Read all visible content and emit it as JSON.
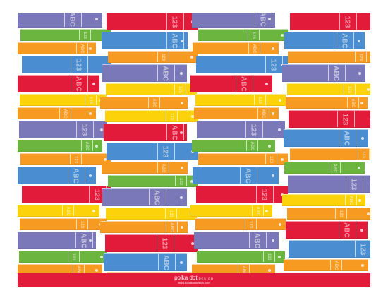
{
  "palette": {
    "red": "#e31b3b",
    "green": "#6cb63f",
    "orange": "#f79a22",
    "blue": "#4a8ed1",
    "purple": "#7a78b8",
    "yellow": "#fcd20a"
  },
  "spine_labels": [
    "ABC",
    "123"
  ],
  "columns": [
    {
      "books": [
        "purple",
        "green",
        "orange",
        "blue",
        "red",
        "yellow",
        "orange",
        "purple",
        "green",
        "orange",
        "blue",
        "red",
        "yellow",
        "orange",
        "purple",
        "green",
        "orange",
        "blue"
      ]
    },
    {
      "books": [
        "red",
        "blue",
        "orange",
        "purple",
        "yellow",
        "orange",
        "yellow",
        "red",
        "blue",
        "orange",
        "green",
        "purple",
        "yellow",
        "orange",
        "red",
        "blue",
        "orange"
      ]
    },
    {
      "books": [
        "purple",
        "green",
        "orange",
        "blue",
        "red",
        "yellow",
        "orange",
        "purple",
        "green",
        "orange",
        "blue",
        "red",
        "yellow",
        "orange",
        "purple",
        "green",
        "orange",
        "blue"
      ]
    },
    {
      "books": [
        "red",
        "blue",
        "orange",
        "purple",
        "yellow",
        "orange",
        "red",
        "blue",
        "orange",
        "green",
        "purple",
        "yellow",
        "orange",
        "red",
        "blue",
        "orange"
      ]
    }
  ],
  "footer": {
    "brand": "polka dot",
    "brand_sub": "DESIGN",
    "url": "www.polkadotdesign.com"
  }
}
